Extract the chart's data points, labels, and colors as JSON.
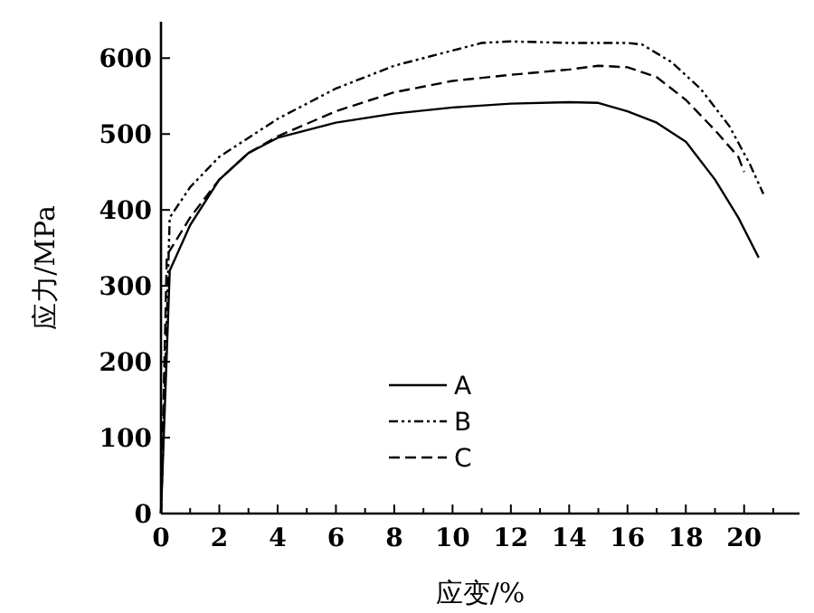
{
  "chart_data": {
    "type": "line",
    "xlabel": "应变/%",
    "ylabel": "应力/MPa",
    "xlim": [
      0,
      21.9
    ],
    "ylim": [
      0,
      648
    ],
    "xticks": [
      0,
      {
        "value": 1,
        "label": null
      },
      2,
      {
        "value": 3,
        "label": null
      },
      4,
      {
        "value": 5,
        "label": null
      },
      6,
      {
        "value": 7,
        "label": null
      },
      8,
      {
        "value": 9,
        "label": null
      },
      10,
      {
        "value": 11,
        "label": null
      },
      12,
      {
        "value": 13,
        "label": null
      },
      14,
      {
        "value": 15,
        "label": null
      },
      16,
      {
        "value": 17,
        "label": null
      },
      18,
      {
        "value": 19,
        "label": null
      },
      20,
      {
        "value": 21,
        "label": null
      }
    ],
    "yticks": [
      0,
      100,
      200,
      300,
      400,
      500,
      600
    ],
    "grid": false,
    "legend": "center",
    "marker": "none",
    "series": [
      {
        "name": "A",
        "color": "#000000",
        "line_style": "solid",
        "x": [
          0,
          0.3,
          1,
          2,
          3,
          4,
          6,
          8,
          10,
          12,
          14,
          15,
          16,
          17,
          18,
          19,
          19.8,
          20.5
        ],
        "values": [
          0,
          320,
          380,
          440,
          475,
          495,
          515,
          527,
          535,
          540,
          542,
          541,
          530,
          515,
          490,
          440,
          390,
          337
        ]
      },
      {
        "name": "B",
        "color": "#000000",
        "line_style": "dashdot",
        "x": [
          0,
          0.3,
          1,
          2,
          4,
          6,
          8,
          10,
          11,
          12,
          14,
          16,
          16.5,
          17.5,
          18.5,
          19.5,
          20.2,
          20.66
        ],
        "values": [
          0,
          390,
          430,
          470,
          520,
          560,
          590,
          610,
          620,
          622,
          620,
          620,
          618,
          595,
          560,
          510,
          460,
          421
        ]
      },
      {
        "name": "C",
        "color": "#000000",
        "line_style": "dashed",
        "x": [
          0,
          0.2,
          1,
          2,
          3,
          4,
          6,
          8,
          10,
          12,
          14,
          15,
          16,
          17,
          18,
          19,
          19.8,
          20
        ],
        "values": [
          0,
          340,
          390,
          440,
          475,
          497,
          530,
          555,
          570,
          578,
          585,
          590,
          588,
          575,
          545,
          505,
          470,
          450
        ]
      }
    ]
  }
}
